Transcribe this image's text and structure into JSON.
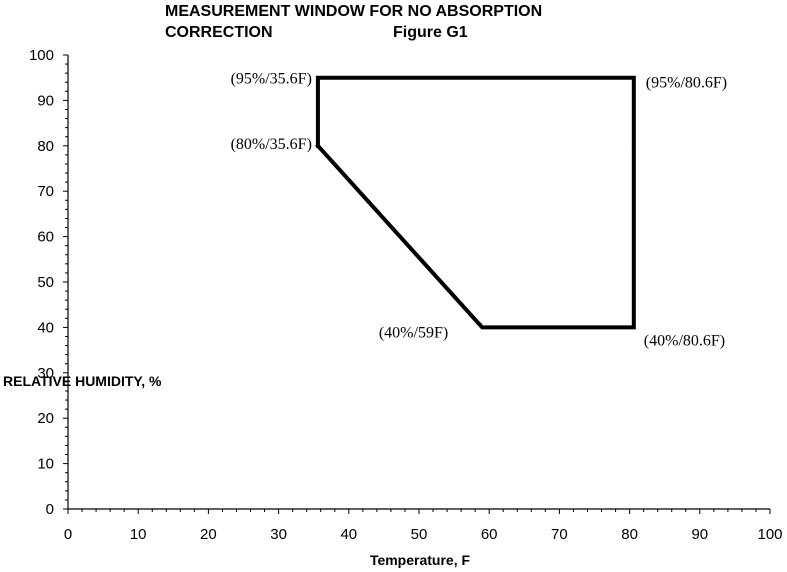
{
  "chart_data": {
    "type": "line",
    "title": "MEASUREMENT WINDOW FOR NO ABSORPTION",
    "subtitle_left": "CORRECTION",
    "subtitle_right": "Figure G1",
    "xlabel": "Temperature, F",
    "ylabel": "RELATIVE HUMIDITY, %",
    "xlim": [
      0,
      100
    ],
    "ylim": [
      0,
      100
    ],
    "xticks": [
      0,
      10,
      20,
      30,
      40,
      50,
      60,
      70,
      80,
      90,
      100
    ],
    "yticks": [
      0,
      10,
      20,
      30,
      40,
      50,
      60,
      70,
      80,
      90,
      100
    ],
    "grid": false,
    "legend": "none",
    "series": [
      {
        "x": [
          35.6,
          35.6,
          80.6,
          80.6,
          59,
          35.6
        ],
        "y": [
          80,
          95,
          95,
          40,
          40,
          80
        ]
      }
    ],
    "annotations": [
      {
        "text": "(95%/35.6F)",
        "x": 35.6,
        "y": 95
      },
      {
        "text": "(80%/35.6F)",
        "x": 35.6,
        "y": 80
      },
      {
        "text": "(95%/80.6F)",
        "x": 80.6,
        "y": 95
      },
      {
        "text": "(40%/59F)",
        "x": 59,
        "y": 40
      },
      {
        "text": "(40%/80.6F)",
        "x": 80.6,
        "y": 40
      }
    ],
    "line_color": "#000000"
  }
}
